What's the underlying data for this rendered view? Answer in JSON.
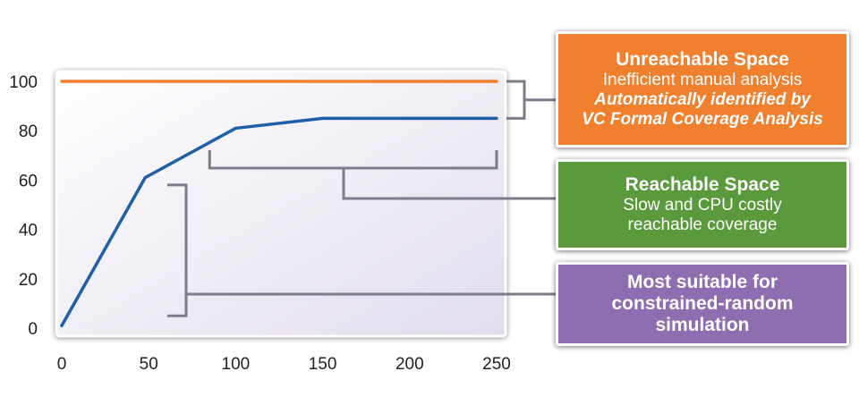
{
  "chart_data": {
    "type": "line",
    "x_ticks": [
      0,
      50,
      100,
      150,
      200,
      250
    ],
    "y_ticks": [
      0,
      20,
      40,
      60,
      80,
      100
    ],
    "xlim": [
      0,
      250
    ],
    "ylim": [
      0,
      100
    ],
    "grid": false,
    "series": [
      {
        "color": "#f07f2e",
        "x": [
          0,
          250
        ],
        "y": [
          100,
          100
        ]
      },
      {
        "color": "#1f5ea8",
        "x": [
          0,
          48,
          100,
          150,
          250
        ],
        "y": [
          1,
          61,
          81,
          85,
          85
        ]
      }
    ],
    "brackets": [
      {
        "target": "unreachable",
        "y_range": [
          85,
          100
        ]
      },
      {
        "target": "reachable",
        "x_range": [
          85,
          250
        ]
      },
      {
        "target": "suitable",
        "y_range": [
          5,
          58
        ]
      }
    ]
  },
  "callouts": {
    "unreachable": {
      "color": "#f07f2e",
      "title": "Unreachable Space",
      "line1": "Inefficient manual analysis",
      "line2": "Automatically identified by",
      "line3": "VC Formal Coverage Analysis"
    },
    "reachable": {
      "color": "#5a9a3c",
      "title": "Reachable Space",
      "line1": "Slow and CPU costly",
      "line2": "reachable coverage"
    },
    "suitable": {
      "color": "#8e6db0",
      "line1": "Most suitable for",
      "line2": "constrained-random",
      "line3": "simulation"
    }
  }
}
